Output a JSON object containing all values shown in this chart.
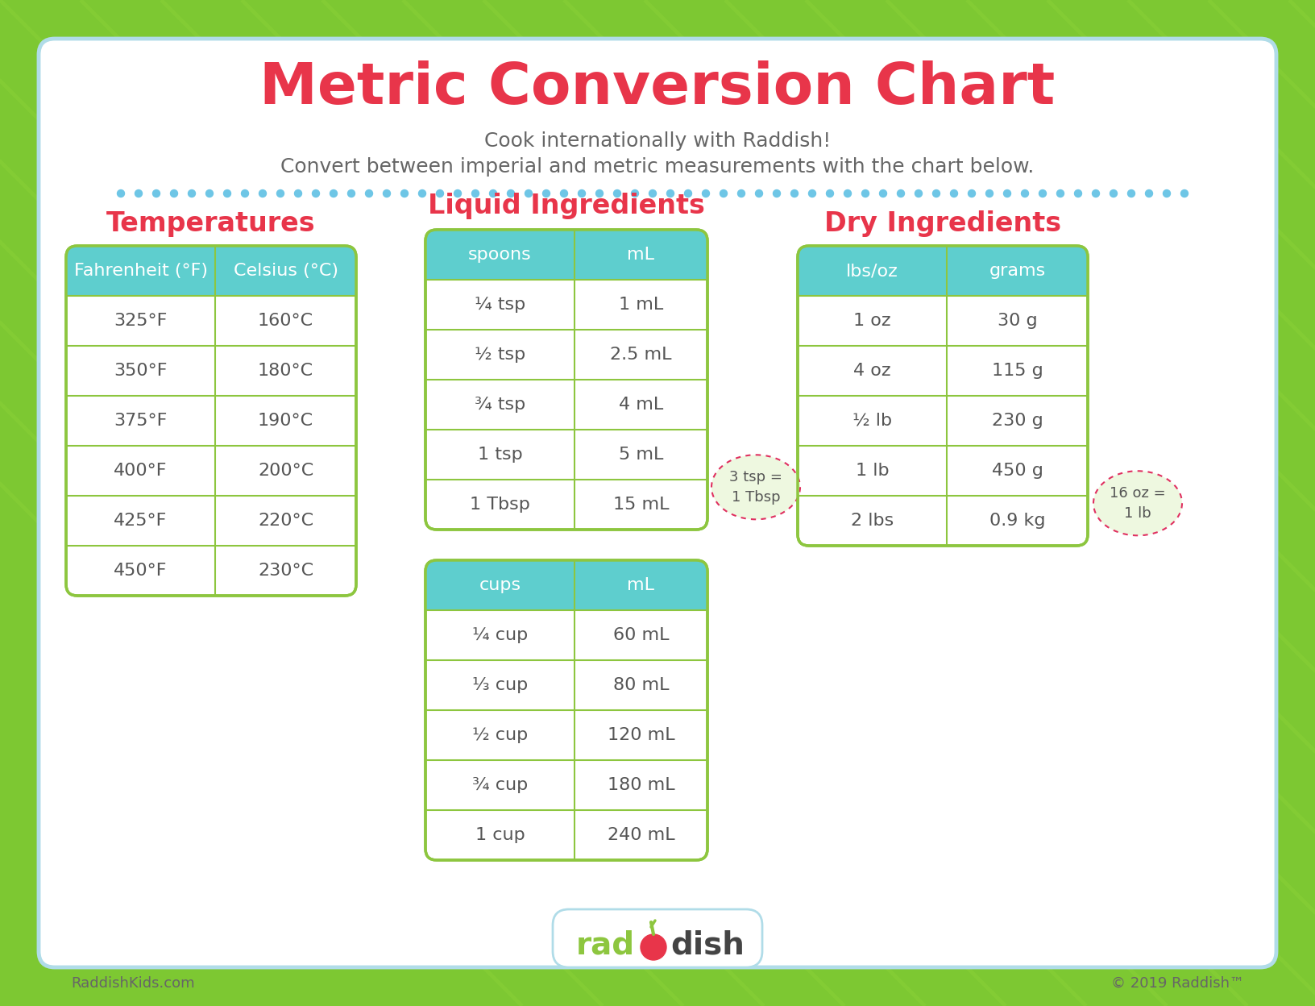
{
  "title": "Metric Conversion Chart",
  "subtitle_line1": "Cook internationally with Raddish!",
  "subtitle_line2": "Convert between imperial and metric measurements with the chart below.",
  "bg_outer": "#7dc832",
  "bg_inner": "#ffffff",
  "border_color": "#b0dce8",
  "header_fill": "#5ecece",
  "header_text_color": "#ffffff",
  "table_border": "#8dc63f",
  "cell_text_color": "#555555",
  "section_title_color": "#e8354a",
  "title_color": "#e8354a",
  "subtitle_color": "#666666",
  "dot_color": "#6ec6e6",
  "temp_section_title": "Temperatures",
  "temp_headers": [
    "Fahrenheit (°F)",
    "Celsius (°C)"
  ],
  "temp_data": [
    [
      "325°F",
      "160°C"
    ],
    [
      "350°F",
      "180°C"
    ],
    [
      "375°F",
      "190°C"
    ],
    [
      "400°F",
      "200°C"
    ],
    [
      "425°F",
      "220°C"
    ],
    [
      "450°F",
      "230°C"
    ]
  ],
  "liquid_section_title": "Liquid Ingredients",
  "spoon_headers": [
    "spoons",
    "mL"
  ],
  "spoon_data": [
    [
      "¼ tsp",
      "1 mL"
    ],
    [
      "½ tsp",
      "2.5 mL"
    ],
    [
      "¾ tsp",
      "4 mL"
    ],
    [
      "1 tsp",
      "5 mL"
    ],
    [
      "1 Tbsp",
      "15 mL"
    ]
  ],
  "spoon_note": "3 tsp =\n1 Tbsp",
  "cup_headers": [
    "cups",
    "mL"
  ],
  "cup_data": [
    [
      "¼ cup",
      "60 mL"
    ],
    [
      "⅓ cup",
      "80 mL"
    ],
    [
      "½ cup",
      "120 mL"
    ],
    [
      "¾ cup",
      "180 mL"
    ],
    [
      "1 cup",
      "240 mL"
    ]
  ],
  "dry_section_title": "Dry Ingredients",
  "dry_headers": [
    "lbs/oz",
    "grams"
  ],
  "dry_data": [
    [
      "1 oz",
      "30 g"
    ],
    [
      "4 oz",
      "115 g"
    ],
    [
      "½ lb",
      "230 g"
    ],
    [
      "1 lb",
      "450 g"
    ],
    [
      "2 lbs",
      "0.9 kg"
    ]
  ],
  "dry_note": "16 oz =\n1 lb",
  "footer_left": "RaddishKids.com",
  "footer_right": "© 2019 Raddish™"
}
